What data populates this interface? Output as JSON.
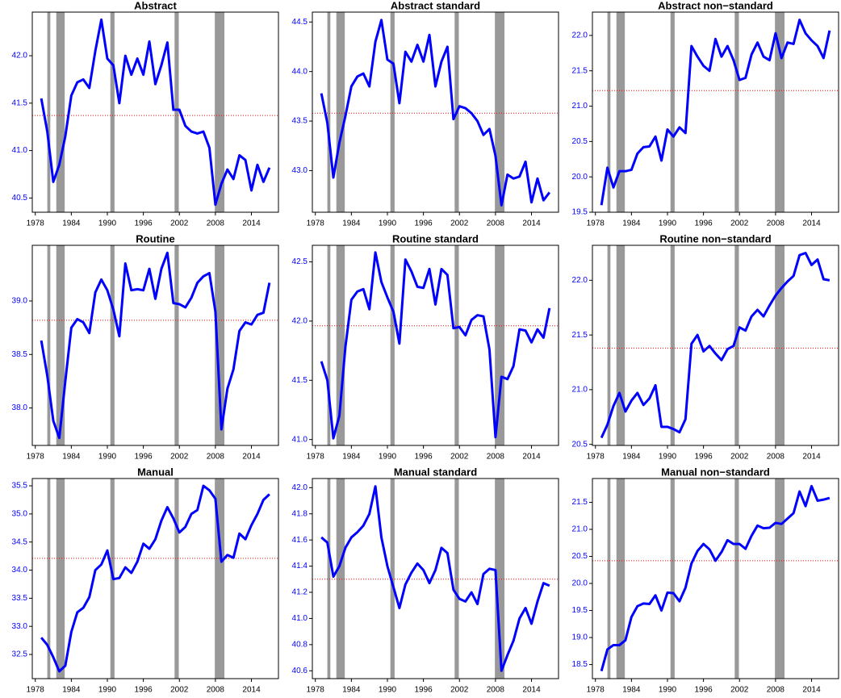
{
  "chart_data": [
    {
      "type": "line",
      "title": "Abstract",
      "color": "#0000ff",
      "x": [
        1979,
        1980,
        1981,
        1982,
        1983,
        1984,
        1985,
        1986,
        1987,
        1988,
        1989,
        1990,
        1991,
        1992,
        1993,
        1994,
        1995,
        1996,
        1997,
        1998,
        1999,
        2000,
        2001,
        2002,
        2003,
        2004,
        2005,
        2006,
        2007,
        2008,
        2009,
        2010,
        2011,
        2012,
        2013,
        2014,
        2015,
        2016,
        2017
      ],
      "values": [
        41.55,
        41.2,
        40.67,
        40.85,
        41.15,
        41.58,
        41.72,
        41.75,
        41.66,
        42.05,
        42.38,
        41.97,
        41.9,
        41.5,
        42.0,
        41.8,
        41.97,
        41.8,
        42.15,
        41.7,
        41.9,
        42.14,
        41.43,
        41.43,
        41.26,
        41.2,
        41.18,
        41.2,
        41.03,
        40.43,
        40.65,
        40.8,
        40.7,
        40.95,
        40.9,
        40.58,
        40.85,
        40.67,
        40.82
      ],
      "xlim": [
        1977.5,
        2018.5
      ],
      "xticks": [
        1978,
        1984,
        1990,
        1996,
        2002,
        2008,
        2014
      ],
      "ylim": [
        40.35,
        42.46
      ],
      "yticks": [
        {
          "value": 40.5,
          "label": "40.5"
        },
        {
          "value": 41,
          "label": "41.0"
        },
        {
          "value": 41.5,
          "label": "41.5"
        },
        {
          "value": 42,
          "label": "42.0"
        }
      ],
      "mean_line": 41.37,
      "mean_color": "#ff0000",
      "recessions": [
        [
          1980.0,
          1980.5
        ],
        [
          1981.5,
          1982.9
        ],
        [
          1990.5,
          1991.2
        ],
        [
          2001.2,
          2001.9
        ],
        [
          2007.9,
          2009.5
        ]
      ],
      "recession_color": "#999999"
    },
    {
      "type": "line",
      "title": "Abstract standard",
      "color": "#0000ff",
      "x": [
        1979,
        1980,
        1981,
        1982,
        1983,
        1984,
        1985,
        1986,
        1987,
        1988,
        1989,
        1990,
        1991,
        1992,
        1993,
        1994,
        1995,
        1996,
        1997,
        1998,
        1999,
        2000,
        2001,
        2002,
        2003,
        2004,
        2005,
        2006,
        2007,
        2008,
        2009,
        2010,
        2011,
        2012,
        2013,
        2014,
        2015,
        2016,
        2017
      ],
      "values": [
        43.78,
        43.48,
        42.93,
        43.28,
        43.55,
        43.85,
        43.95,
        43.98,
        43.85,
        44.3,
        44.52,
        44.12,
        44.08,
        43.68,
        44.2,
        44.1,
        44.27,
        44.1,
        44.37,
        43.85,
        44.1,
        44.25,
        43.52,
        43.65,
        43.63,
        43.58,
        43.5,
        43.36,
        43.42,
        43.15,
        42.65,
        42.96,
        42.92,
        42.94,
        43.09,
        42.68,
        42.92,
        42.7,
        42.78
      ],
      "xlim": [
        1977.5,
        2018.5
      ],
      "xticks": [
        1978,
        1984,
        1990,
        1996,
        2002,
        2008,
        2014
      ],
      "ylim": [
        42.58,
        44.6
      ],
      "yticks": [
        {
          "value": 43,
          "label": "43.0"
        },
        {
          "value": 43.5,
          "label": "43.5"
        },
        {
          "value": 44,
          "label": "44.0"
        },
        {
          "value": 44.5,
          "label": "44.5"
        }
      ],
      "mean_line": 43.58,
      "mean_color": "#ff0000",
      "recessions": [
        [
          1980.0,
          1980.5
        ],
        [
          1981.5,
          1982.9
        ],
        [
          1990.5,
          1991.2
        ],
        [
          2001.2,
          2001.9
        ],
        [
          2007.9,
          2009.5
        ]
      ],
      "recession_color": "#999999"
    },
    {
      "type": "line",
      "title": "Abstract non−standard",
      "color": "#0000ff",
      "x": [
        1979,
        1980,
        1981,
        1982,
        1983,
        1984,
        1985,
        1986,
        1987,
        1988,
        1989,
        1990,
        1991,
        1992,
        1993,
        1994,
        1995,
        1996,
        1997,
        1998,
        1999,
        2000,
        2001,
        2002,
        2003,
        2004,
        2005,
        2006,
        2007,
        2008,
        2009,
        2010,
        2011,
        2012,
        2013,
        2014,
        2015,
        2016,
        2017
      ],
      "values": [
        19.6,
        20.13,
        19.85,
        20.08,
        20.08,
        20.1,
        20.33,
        20.42,
        20.43,
        20.57,
        20.23,
        20.67,
        20.57,
        20.7,
        20.62,
        21.85,
        21.7,
        21.57,
        21.5,
        21.95,
        21.7,
        21.85,
        21.65,
        21.37,
        21.4,
        21.73,
        21.9,
        21.7,
        21.65,
        22.03,
        21.68,
        21.9,
        21.88,
        22.22,
        22.03,
        21.93,
        21.85,
        21.68,
        22.07
      ],
      "xlim": [
        1977.5,
        2018.5
      ],
      "xticks": [
        1978,
        1984,
        1990,
        1996,
        2002,
        2008,
        2014
      ],
      "ylim": [
        19.5,
        22.33
      ],
      "yticks": [
        19.5,
        {
          "value": 20,
          "label": "20.0"
        },
        20.5,
        {
          "value": 21,
          "label": "21.0"
        },
        21.5,
        {
          "value": 22,
          "label": "22.0"
        }
      ],
      "mean_line": 21.22,
      "mean_color": "#ff0000",
      "recessions": [
        [
          1980.0,
          1980.5
        ],
        [
          1981.5,
          1982.9
        ],
        [
          1990.5,
          1991.2
        ],
        [
          2001.2,
          2001.9
        ],
        [
          2007.9,
          2009.5
        ]
      ],
      "recession_color": "#999999"
    },
    {
      "type": "line",
      "title": "Routine",
      "color": "#0000ff",
      "x": [
        1979,
        1980,
        1981,
        1982,
        1983,
        1984,
        1985,
        1986,
        1987,
        1988,
        1989,
        1990,
        1991,
        1992,
        1993,
        1994,
        1995,
        1996,
        1997,
        1998,
        1999,
        2000,
        2001,
        2002,
        2003,
        2004,
        2005,
        2006,
        2007,
        2008,
        2009,
        2010,
        2011,
        2012,
        2013,
        2014,
        2015,
        2016,
        2017
      ],
      "values": [
        38.63,
        38.3,
        37.88,
        37.72,
        38.25,
        38.75,
        38.83,
        38.8,
        38.7,
        39.08,
        39.2,
        39.1,
        38.92,
        38.67,
        39.35,
        39.1,
        39.11,
        39.1,
        39.3,
        39.02,
        39.3,
        39.45,
        38.98,
        38.97,
        38.94,
        39.03,
        39.17,
        39.23,
        39.26,
        38.9,
        37.8,
        38.18,
        38.36,
        38.72,
        38.8,
        38.78,
        38.87,
        38.89,
        39.17
      ],
      "xlim": [
        1977.5,
        2018.5
      ],
      "xticks": [
        1978,
        1984,
        1990,
        1996,
        2002,
        2008,
        2014
      ],
      "ylim": [
        37.65,
        39.52
      ],
      "yticks": [
        {
          "value": 38,
          "label": "38.0"
        },
        38.5,
        {
          "value": 39,
          "label": "39.0"
        }
      ],
      "mean_line": 38.82,
      "mean_color": "#ff0000",
      "recessions": [
        [
          1980.0,
          1980.5
        ],
        [
          1981.5,
          1982.9
        ],
        [
          1990.5,
          1991.2
        ],
        [
          2001.2,
          2001.9
        ],
        [
          2007.9,
          2009.5
        ]
      ],
      "recession_color": "#999999"
    },
    {
      "type": "line",
      "title": "Routine standard",
      "color": "#0000ff",
      "x": [
        1979,
        1980,
        1981,
        1982,
        1983,
        1984,
        1985,
        1986,
        1987,
        1988,
        1989,
        1990,
        1991,
        1992,
        1993,
        1994,
        1995,
        1996,
        1997,
        1998,
        1999,
        2000,
        2001,
        2002,
        2003,
        2004,
        2005,
        2006,
        2007,
        2008,
        2009,
        2010,
        2011,
        2012,
        2013,
        2014,
        2015,
        2016,
        2017
      ],
      "values": [
        41.66,
        41.5,
        41.01,
        41.2,
        41.78,
        42.18,
        42.25,
        42.27,
        42.1,
        42.58,
        42.33,
        42.2,
        42.08,
        41.81,
        42.52,
        42.42,
        42.29,
        42.28,
        42.44,
        42.14,
        42.44,
        42.39,
        41.94,
        41.95,
        41.88,
        42.01,
        42.05,
        42.04,
        41.76,
        41.02,
        41.53,
        41.51,
        41.62,
        41.93,
        41.92,
        41.82,
        41.93,
        41.86,
        42.11
      ],
      "xlim": [
        1977.5,
        2018.5
      ],
      "xticks": [
        1978,
        1984,
        1990,
        1996,
        2002,
        2008,
        2014
      ],
      "ylim": [
        40.95,
        42.64
      ],
      "yticks": [
        {
          "value": 41,
          "label": "41.0"
        },
        41.5,
        {
          "value": 42,
          "label": "42.0"
        },
        42.5
      ],
      "mean_line": 41.96,
      "mean_color": "#ff0000",
      "recessions": [
        [
          1980.0,
          1980.5
        ],
        [
          1981.5,
          1982.9
        ],
        [
          1990.5,
          1991.2
        ],
        [
          2001.2,
          2001.9
        ],
        [
          2007.9,
          2009.5
        ]
      ],
      "recession_color": "#999999"
    },
    {
      "type": "line",
      "title": "Routine non−standard",
      "color": "#0000ff",
      "x": [
        1979,
        1980,
        1981,
        1982,
        1983,
        1984,
        1985,
        1986,
        1987,
        1988,
        1989,
        1990,
        1991,
        1992,
        1993,
        1994,
        1995,
        1996,
        1997,
        1998,
        1999,
        2000,
        2001,
        2002,
        2003,
        2004,
        2005,
        2006,
        2007,
        2008,
        2009,
        2010,
        2011,
        2012,
        2013,
        2014,
        2015,
        2016,
        2017
      ],
      "values": [
        20.56,
        20.68,
        20.85,
        20.97,
        20.8,
        20.9,
        20.97,
        20.86,
        20.92,
        21.04,
        20.66,
        20.66,
        20.64,
        20.61,
        20.73,
        21.42,
        21.5,
        21.35,
        21.4,
        21.33,
        21.27,
        21.37,
        21.4,
        21.57,
        21.54,
        21.67,
        21.73,
        21.67,
        21.77,
        21.86,
        21.93,
        21.99,
        22.04,
        22.23,
        22.25,
        22.14,
        22.19,
        22.01,
        22.0
      ],
      "xlim": [
        1977.5,
        2018.5
      ],
      "xticks": [
        1978,
        1984,
        1990,
        1996,
        2002,
        2008,
        2014
      ],
      "ylim": [
        20.49,
        22.32
      ],
      "yticks": [
        20.5,
        {
          "value": 21,
          "label": "21.0"
        },
        21.5,
        {
          "value": 22,
          "label": "22.0"
        }
      ],
      "mean_line": 21.38,
      "mean_color": "#ff0000",
      "recessions": [
        [
          1980.0,
          1980.5
        ],
        [
          1981.5,
          1982.9
        ],
        [
          1990.5,
          1991.2
        ],
        [
          2001.2,
          2001.9
        ],
        [
          2007.9,
          2009.5
        ]
      ],
      "recession_color": "#999999"
    },
    {
      "type": "line",
      "title": "Manual",
      "color": "#0000ff",
      "x": [
        1979,
        1980,
        1981,
        1982,
        1983,
        1984,
        1985,
        1986,
        1987,
        1988,
        1989,
        1990,
        1991,
        1992,
        1993,
        1994,
        1995,
        1996,
        1997,
        1998,
        1999,
        2000,
        2001,
        2002,
        2003,
        2004,
        2005,
        2006,
        2007,
        2008,
        2009,
        2010,
        2011,
        2012,
        2013,
        2014,
        2015,
        2016,
        2017
      ],
      "values": [
        32.8,
        32.67,
        32.45,
        32.2,
        32.3,
        32.9,
        33.25,
        33.33,
        33.52,
        34.0,
        34.1,
        34.35,
        33.84,
        33.86,
        34.05,
        33.95,
        34.15,
        34.47,
        34.38,
        34.55,
        34.88,
        35.12,
        34.92,
        34.67,
        34.77,
        35.0,
        35.07,
        35.5,
        35.42,
        35.27,
        34.15,
        34.27,
        34.22,
        34.65,
        34.55,
        34.8,
        35.0,
        35.25,
        35.35
      ],
      "xlim": [
        1977.5,
        2018.5
      ],
      "xticks": [
        1978,
        1984,
        1990,
        1996,
        2002,
        2008,
        2014
      ],
      "ylim": [
        32.07,
        35.63
      ],
      "yticks": [
        32.5,
        {
          "value": 33,
          "label": "33.0"
        },
        33.5,
        {
          "value": 34,
          "label": "34.0"
        },
        34.5,
        {
          "value": 35,
          "label": "35.0"
        },
        35.5
      ],
      "mean_line": 34.21,
      "mean_color": "#ff0000",
      "recessions": [
        [
          1980.0,
          1980.5
        ],
        [
          1981.5,
          1982.9
        ],
        [
          1990.5,
          1991.2
        ],
        [
          2001.2,
          2001.9
        ],
        [
          2007.9,
          2009.5
        ]
      ],
      "recession_color": "#999999"
    },
    {
      "type": "line",
      "title": "Manual standard",
      "color": "#0000ff",
      "x": [
        1979,
        1980,
        1981,
        1982,
        1983,
        1984,
        1985,
        1986,
        1987,
        1988,
        1989,
        1990,
        1991,
        1992,
        1993,
        1994,
        1995,
        1996,
        1997,
        1998,
        1999,
        2000,
        2001,
        2002,
        2003,
        2004,
        2005,
        2006,
        2007,
        2008,
        2009,
        2010,
        2011,
        2012,
        2013,
        2014,
        2015,
        2016,
        2017
      ],
      "values": [
        41.62,
        41.58,
        41.32,
        41.4,
        41.54,
        41.62,
        41.66,
        41.71,
        41.8,
        42.01,
        41.62,
        41.4,
        41.24,
        41.08,
        41.26,
        41.35,
        41.42,
        41.37,
        41.27,
        41.37,
        41.54,
        41.5,
        41.22,
        41.15,
        41.13,
        41.2,
        41.11,
        41.34,
        41.38,
        41.37,
        40.6,
        40.72,
        40.83,
        41.0,
        41.08,
        40.96,
        41.13,
        41.27,
        41.25
      ],
      "xlim": [
        1977.5,
        2018.5
      ],
      "xticks": [
        1978,
        1984,
        1990,
        1996,
        2002,
        2008,
        2014
      ],
      "ylim": [
        40.54,
        42.07
      ],
      "yticks": [
        40.6,
        40.8,
        {
          "value": 41,
          "label": "41.0"
        },
        41.2,
        41.4,
        41.6,
        41.8,
        {
          "value": 42,
          "label": "42.0"
        }
      ],
      "mean_line": 41.3,
      "mean_color": "#ff0000",
      "recessions": [
        [
          1980.0,
          1980.5
        ],
        [
          1981.5,
          1982.9
        ],
        [
          1990.5,
          1991.2
        ],
        [
          2001.2,
          2001.9
        ],
        [
          2007.9,
          2009.5
        ]
      ],
      "recession_color": "#999999"
    },
    {
      "type": "line",
      "title": "Manual non−standard",
      "color": "#0000ff",
      "x": [
        1979,
        1980,
        1981,
        1982,
        1983,
        1984,
        1985,
        1986,
        1987,
        1988,
        1989,
        1990,
        1991,
        1992,
        1993,
        1994,
        1995,
        1996,
        1997,
        1998,
        1999,
        2000,
        2001,
        2002,
        2003,
        2004,
        2005,
        2006,
        2007,
        2008,
        2009,
        2010,
        2011,
        2012,
        2013,
        2014,
        2015,
        2016,
        2017
      ],
      "values": [
        18.38,
        18.78,
        18.86,
        18.86,
        18.95,
        19.38,
        19.58,
        19.63,
        19.62,
        19.78,
        19.5,
        19.83,
        19.82,
        19.67,
        19.92,
        20.37,
        20.6,
        20.73,
        20.63,
        20.42,
        20.58,
        20.8,
        20.73,
        20.73,
        20.64,
        20.88,
        21.07,
        21.02,
        21.03,
        21.12,
        21.1,
        21.2,
        21.3,
        21.7,
        21.43,
        21.8,
        21.53,
        21.55,
        21.58
      ],
      "xlim": [
        1977.5,
        2018.5
      ],
      "xticks": [
        1978,
        1984,
        1990,
        1996,
        2002,
        2008,
        2014
      ],
      "ylim": [
        18.24,
        21.94
      ],
      "yticks": [
        18.5,
        {
          "value": 19,
          "label": "19.0"
        },
        19.5,
        {
          "value": 20,
          "label": "20.0"
        },
        20.5,
        {
          "value": 21,
          "label": "21.0"
        },
        21.5
      ],
      "mean_line": 20.42,
      "mean_color": "#ff0000",
      "recessions": [
        [
          1980.0,
          1980.5
        ],
        [
          1981.5,
          1982.9
        ],
        [
          1990.5,
          1991.2
        ],
        [
          2001.2,
          2001.9
        ],
        [
          2007.9,
          2009.5
        ]
      ],
      "recession_color": "#999999"
    }
  ]
}
